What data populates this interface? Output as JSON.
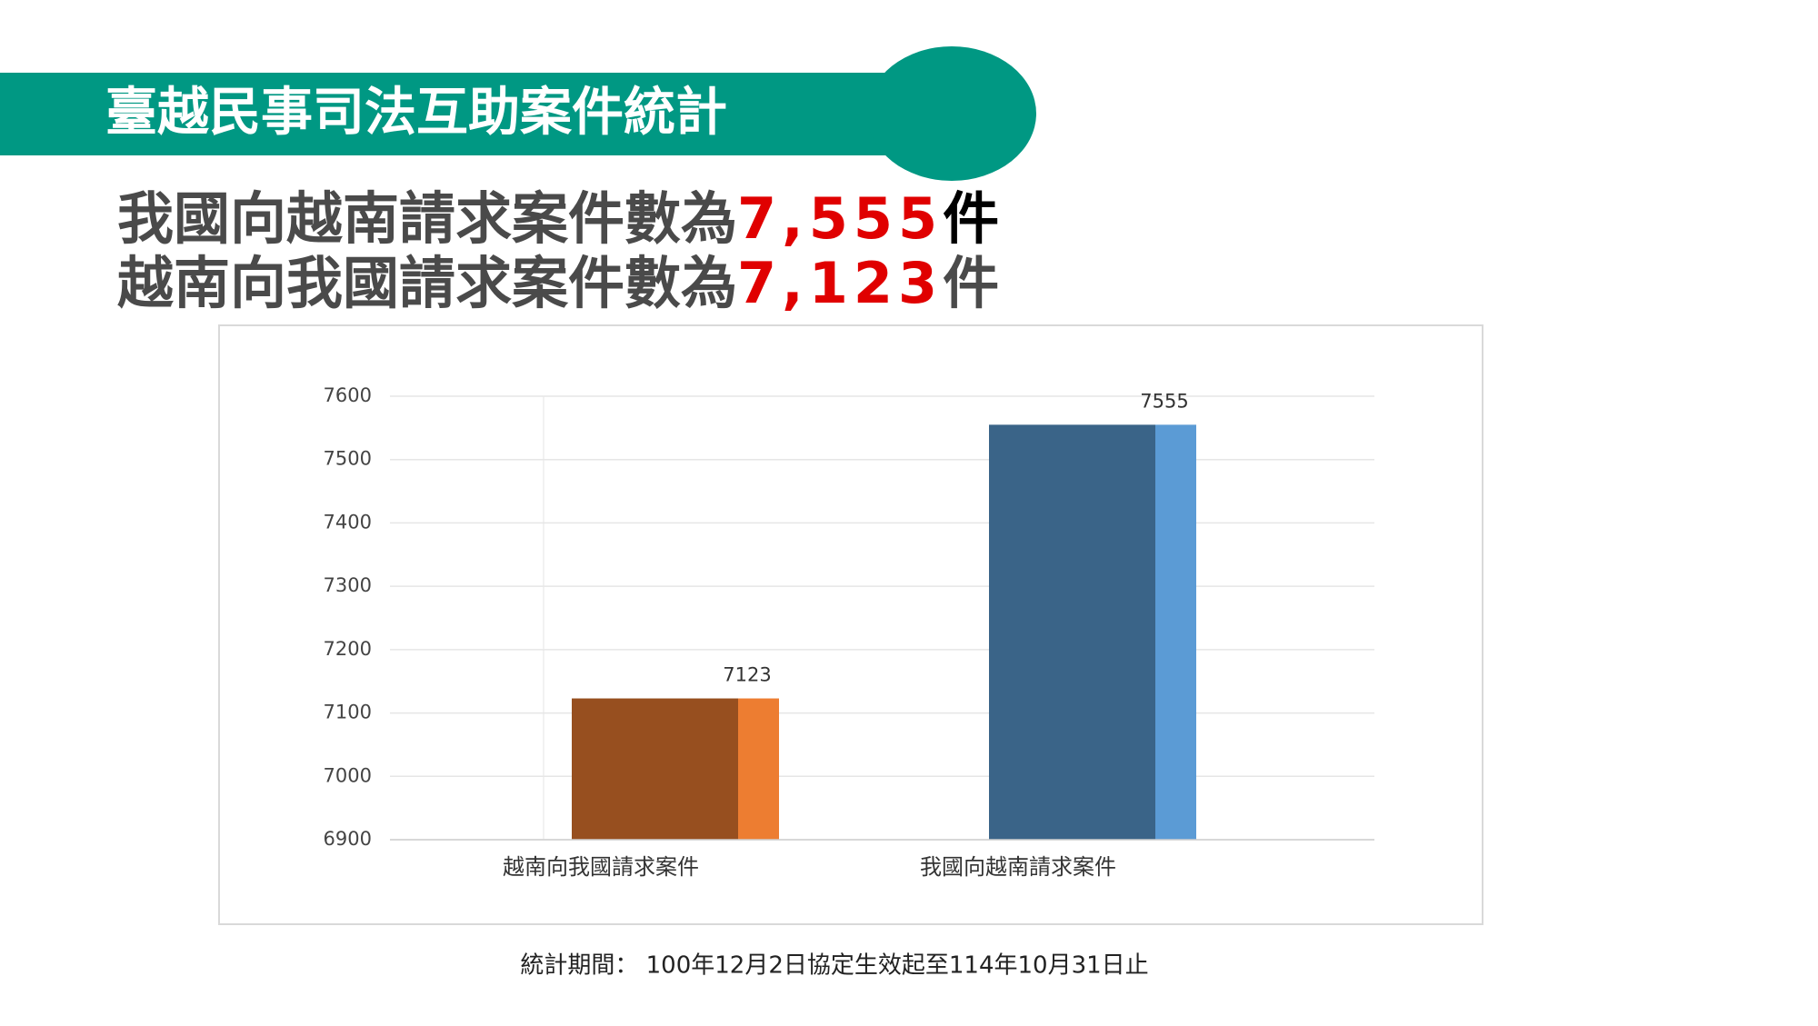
{
  "slide": {
    "title": "臺越民事司法互助案件統計",
    "summary": [
      {
        "text": "我國向越南請求案件數為",
        "number": "7,555",
        "unit": "件"
      },
      {
        "text": "越南向我國請求案件數為",
        "number": "7,123",
        "unit": "件"
      }
    ],
    "footnote": "統計期間： 100年12月2日協定生效起至114年10月31日止"
  },
  "chart_data": {
    "type": "bar",
    "categories": [
      "越南向我國請求案件",
      "我國向越南請求案件"
    ],
    "values": [
      7123,
      7555
    ],
    "colors": [
      "#974f1f",
      "#3a6488"
    ],
    "side_colors": [
      "#ed7d31",
      "#5b9bd5"
    ],
    "ylim": [
      6900,
      7600
    ],
    "yticks": [
      6900,
      7000,
      7100,
      7200,
      7300,
      7400,
      7500,
      7600
    ],
    "grid": true
  }
}
